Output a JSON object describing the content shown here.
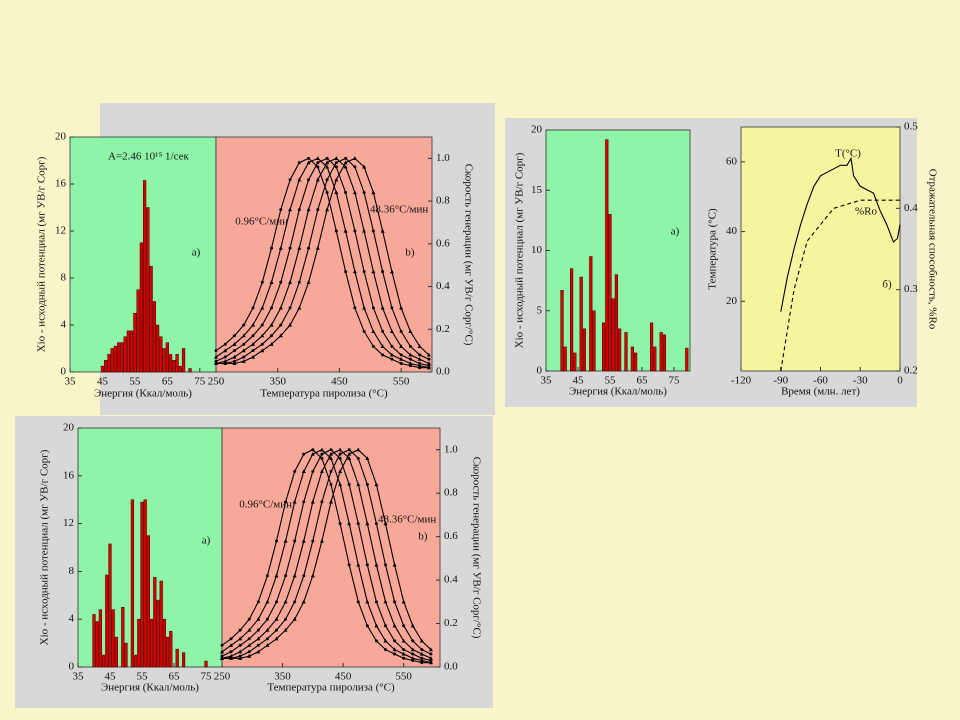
{
  "chart_data": [
    {
      "type": "bar",
      "x_label": "Энергия (Ккал/моль)",
      "y_label": "Xio - исходный потенциал (мг УВ/г Сорг)",
      "annotations": [
        "A=2.46 10¹⁵ 1/сек",
        "a)"
      ],
      "x": [
        45,
        46,
        47,
        48,
        49,
        50,
        51,
        52,
        53,
        54,
        55,
        56,
        57,
        58,
        59,
        60,
        61,
        62,
        63,
        64,
        65,
        66,
        67,
        68,
        69,
        70,
        72
      ],
      "values": [
        0.5,
        1,
        1.5,
        2,
        2.2,
        2.5,
        2.5,
        3,
        3.5,
        3.5,
        5,
        7,
        11,
        16.3,
        14,
        9,
        6,
        4,
        3,
        2,
        2.5,
        1.5,
        1,
        1.5,
        0.5,
        2,
        0.3
      ],
      "color": "#d40000",
      "background": "#8ef5a8",
      "xlim": [
        35,
        80
      ],
      "xticks": [
        35,
        45,
        55,
        65,
        75
      ],
      "ylim": [
        0,
        20
      ],
      "yticks": [
        0,
        4,
        8,
        12,
        16,
        20
      ]
    },
    {
      "type": "line",
      "x_label": "Температура пиролиза (°С)",
      "y2_label": "Скорость генерации (мг УВ/г Сорг/°С)",
      "annotations": [
        "b)",
        "0.96°С/мин",
        "48.36°С/мин"
      ],
      "markers": true,
      "background": "#f7a898",
      "x": [
        250,
        265,
        280,
        295,
        310,
        325,
        340,
        355,
        370,
        385,
        400,
        415,
        430,
        445,
        460,
        475,
        490,
        505,
        520,
        535,
        550,
        565,
        580,
        595
      ],
      "series": [
        {
          "color": "#000000",
          "axis": "y2",
          "values": [
            0.1,
            0.13,
            0.17,
            0.22,
            0.3,
            0.42,
            0.58,
            0.76,
            0.9,
            0.98,
            1.0,
            0.96,
            0.84,
            0.66,
            0.47,
            0.3,
            0.19,
            0.12,
            0.08,
            0.06,
            0.04,
            0.03,
            0.02,
            0.02
          ]
        },
        {
          "color": "#000000",
          "axis": "y2",
          "values": [
            0.07,
            0.1,
            0.13,
            0.17,
            0.22,
            0.3,
            0.42,
            0.58,
            0.76,
            0.9,
            0.98,
            1.0,
            0.96,
            0.84,
            0.66,
            0.47,
            0.3,
            0.19,
            0.12,
            0.08,
            0.06,
            0.04,
            0.03,
            0.02
          ]
        },
        {
          "color": "#000000",
          "axis": "y2",
          "values": [
            0.05,
            0.07,
            0.1,
            0.13,
            0.17,
            0.22,
            0.3,
            0.42,
            0.58,
            0.76,
            0.9,
            0.98,
            1.0,
            0.96,
            0.84,
            0.66,
            0.47,
            0.3,
            0.19,
            0.12,
            0.08,
            0.06,
            0.04,
            0.03
          ]
        },
        {
          "color": "#000000",
          "axis": "y2",
          "values": [
            0.04,
            0.05,
            0.07,
            0.1,
            0.13,
            0.17,
            0.22,
            0.3,
            0.42,
            0.58,
            0.76,
            0.9,
            0.98,
            1.0,
            0.96,
            0.84,
            0.66,
            0.47,
            0.3,
            0.19,
            0.12,
            0.08,
            0.06,
            0.04
          ]
        },
        {
          "color": "#000000",
          "axis": "y2",
          "values": [
            0.04,
            0.04,
            0.05,
            0.07,
            0.1,
            0.13,
            0.17,
            0.22,
            0.3,
            0.42,
            0.58,
            0.76,
            0.9,
            0.98,
            1.0,
            0.96,
            0.84,
            0.66,
            0.47,
            0.3,
            0.19,
            0.12,
            0.08,
            0.06
          ]
        },
        {
          "color": "#000000",
          "axis": "y2",
          "values": [
            0.04,
            0.04,
            0.04,
            0.05,
            0.07,
            0.1,
            0.13,
            0.17,
            0.22,
            0.3,
            0.42,
            0.58,
            0.76,
            0.9,
            0.98,
            1.0,
            0.96,
            0.84,
            0.66,
            0.47,
            0.3,
            0.19,
            0.12,
            0.08
          ]
        }
      ],
      "xlim": [
        250,
        600
      ],
      "xticks": [
        250,
        350,
        450,
        550
      ],
      "y2lim": [
        0,
        1.1
      ],
      "y2ticks": [
        {
          "value": 0,
          "label": "0.0"
        },
        0.2,
        0.4,
        0.6,
        0.8,
        {
          "value": 1,
          "label": "1.0"
        }
      ]
    },
    {
      "type": "bar",
      "x_label": "Энергия (Ккал/моль)",
      "y_label": "Xio - исходный потенциал (мг УВ/г Сорг)",
      "annotations": [
        "a)"
      ],
      "x": [
        40,
        41,
        43,
        44,
        46,
        47,
        49,
        50,
        53,
        54,
        55,
        56,
        57,
        58,
        60,
        62,
        63,
        68,
        69,
        71,
        72,
        79
      ],
      "values": [
        6.7,
        2,
        8.5,
        1.5,
        7.8,
        3.5,
        9.5,
        5,
        4,
        19.2,
        13,
        6,
        8,
        3.5,
        3.2,
        2,
        1.5,
        4,
        2,
        3.2,
        3,
        1.9
      ],
      "color": "#d40000",
      "background": "#8ef5a8",
      "xlim": [
        35,
        80
      ],
      "xticks": [
        35,
        45,
        55,
        65,
        75
      ],
      "ylim": [
        0,
        20
      ],
      "yticks": [
        0,
        5,
        10,
        15,
        20
      ]
    },
    {
      "type": "line",
      "x_label": "Время (млн. лет)",
      "y_label": "Температура (°С)",
      "y2_label": "Отражательная способность, %Ro",
      "annotations": [
        "б)"
      ],
      "background": "#f5f5a0",
      "series": [
        {
          "name": "T(°С)",
          "color": "#000000",
          "axis": "y",
          "x": [
            -90,
            -85,
            -80,
            -75,
            -70,
            -65,
            -60,
            -55,
            -50,
            -45,
            -40,
            -37,
            -35,
            -30,
            -25,
            -20,
            -15,
            -10,
            -5,
            -2,
            0
          ],
          "values": [
            17,
            27,
            35,
            42,
            48,
            53,
            56,
            57,
            58,
            59,
            59,
            61,
            56,
            53,
            52,
            51,
            46,
            42,
            37,
            38,
            42
          ]
        },
        {
          "name": "%Ro",
          "color": "#000000",
          "axis": "y2",
          "dashed": true,
          "x": [
            -90,
            -85,
            -80,
            -75,
            -70,
            -65,
            -60,
            -50,
            -40,
            -30,
            -20,
            -10,
            0
          ],
          "values": [
            0.2,
            0.25,
            0.3,
            0.33,
            0.36,
            0.37,
            0.38,
            0.4,
            0.405,
            0.41,
            0.41,
            0.41,
            0.41
          ]
        }
      ],
      "xlim": [
        -120,
        0
      ],
      "xticks": [
        -120,
        -90,
        -60,
        -30,
        0
      ],
      "ylim": [
        0,
        70
      ],
      "yticks": [
        20,
        40,
        60
      ],
      "y2lim": [
        0.2,
        0.5
      ],
      "y2ticks": [
        0.2,
        0.3,
        0.4,
        0.5
      ]
    },
    {
      "type": "bar",
      "x_label": "Энергия (Ккал/моль)",
      "y_label": "Xio - исходный потенциал (мг УВ/г Сорг)",
      "annotations": [
        "a)"
      ],
      "x": [
        40,
        41,
        42,
        43,
        44,
        45,
        46,
        47,
        49,
        50,
        52,
        53,
        54,
        55,
        56,
        57,
        58,
        59,
        60,
        61,
        62,
        63,
        64,
        66,
        68,
        75
      ],
      "values": [
        4.4,
        3.8,
        4.8,
        1,
        7.7,
        10.3,
        4.8,
        2.5,
        5,
        2,
        14,
        1,
        4,
        13.8,
        14,
        11,
        4,
        7.5,
        5.6,
        7.2,
        4,
        2.5,
        3,
        1.5,
        1.2,
        0.5
      ],
      "color": "#d40000",
      "background": "#8ef5a8",
      "xlim": [
        35,
        80
      ],
      "xticks": [
        35,
        45,
        55,
        65,
        75
      ],
      "ylim": [
        0,
        20
      ],
      "yticks": [
        0,
        4,
        8,
        12,
        16,
        20
      ]
    },
    {
      "type": "line",
      "x_label": "Температура пиролиза (°С)",
      "y2_label": "Скорость генерации (мг УВ/г Сорг/°С)",
      "annotations": [
        "b)",
        "0.96°С/мин",
        "48.36°С/мин"
      ],
      "markers": true,
      "background": "#f7a898",
      "x": [
        250,
        265,
        280,
        295,
        310,
        325,
        340,
        355,
        370,
        385,
        400,
        415,
        430,
        445,
        460,
        475,
        490,
        505,
        520,
        535,
        550,
        565,
        580,
        595
      ],
      "series": [
        {
          "color": "#000000",
          "axis": "y2",
          "values": [
            0.1,
            0.13,
            0.17,
            0.22,
            0.3,
            0.42,
            0.58,
            0.76,
            0.9,
            0.98,
            1.0,
            0.96,
            0.84,
            0.66,
            0.47,
            0.3,
            0.19,
            0.12,
            0.08,
            0.06,
            0.04,
            0.03,
            0.02,
            0.02
          ]
        },
        {
          "color": "#000000",
          "axis": "y2",
          "values": [
            0.07,
            0.1,
            0.13,
            0.17,
            0.22,
            0.3,
            0.42,
            0.58,
            0.76,
            0.9,
            0.98,
            1.0,
            0.96,
            0.84,
            0.66,
            0.47,
            0.3,
            0.19,
            0.12,
            0.08,
            0.06,
            0.04,
            0.03,
            0.02
          ]
        },
        {
          "color": "#000000",
          "axis": "y2",
          "values": [
            0.05,
            0.07,
            0.1,
            0.13,
            0.17,
            0.22,
            0.3,
            0.42,
            0.58,
            0.76,
            0.9,
            0.98,
            1.0,
            0.96,
            0.84,
            0.66,
            0.47,
            0.3,
            0.19,
            0.12,
            0.08,
            0.06,
            0.04,
            0.03
          ]
        },
        {
          "color": "#000000",
          "axis": "y2",
          "values": [
            0.04,
            0.05,
            0.07,
            0.1,
            0.13,
            0.17,
            0.22,
            0.3,
            0.42,
            0.58,
            0.76,
            0.9,
            0.98,
            1.0,
            0.96,
            0.84,
            0.66,
            0.47,
            0.3,
            0.19,
            0.12,
            0.08,
            0.06,
            0.04
          ]
        },
        {
          "color": "#000000",
          "axis": "y2",
          "values": [
            0.04,
            0.04,
            0.05,
            0.07,
            0.1,
            0.13,
            0.17,
            0.22,
            0.3,
            0.42,
            0.58,
            0.76,
            0.9,
            0.98,
            1.0,
            0.96,
            0.84,
            0.66,
            0.47,
            0.3,
            0.19,
            0.12,
            0.08,
            0.06
          ]
        },
        {
          "color": "#000000",
          "axis": "y2",
          "values": [
            0.04,
            0.04,
            0.04,
            0.05,
            0.07,
            0.1,
            0.13,
            0.17,
            0.22,
            0.3,
            0.42,
            0.58,
            0.76,
            0.9,
            0.98,
            1.0,
            0.96,
            0.84,
            0.66,
            0.47,
            0.3,
            0.19,
            0.12,
            0.08
          ]
        }
      ],
      "xlim": [
        250,
        610
      ],
      "xticks": [
        250,
        350,
        450,
        550
      ],
      "y2lim": [
        0,
        1.1
      ],
      "y2ticks": [
        {
          "value": 0,
          "label": "0.0"
        },
        0.2,
        0.4,
        0.6,
        0.8,
        {
          "value": 1,
          "label": "1.0"
        }
      ]
    }
  ]
}
